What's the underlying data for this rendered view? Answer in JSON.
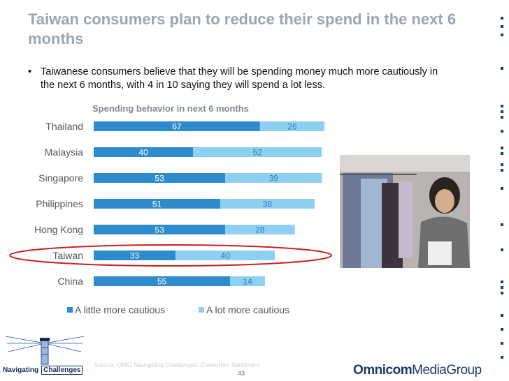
{
  "slide": {
    "title": "Taiwan consumers plan to reduce their spend in the next 6 months",
    "bullet_mark": "•",
    "bullet": "Taiwanese consumers believe that they will be spending money much more cautiously in the next 6 months, with 4 in 10 saying they will spend a lot less.",
    "source": "Source: OMG Navigating Challenges: Consumer Sentiment",
    "page_number": "43",
    "brand_bold": "Omnicom",
    "brand_rest": "MediaGroup",
    "logo_text_1": "Navigating",
    "logo_text_2": "Challenges"
  },
  "colors": {
    "series_1": "#2e8ccc",
    "series_2": "#8fd0f2",
    "highlight": "#cc1f1f",
    "title": "#9aa7b3"
  },
  "chart_data": {
    "type": "bar",
    "orientation": "horizontal",
    "stacked": true,
    "title": "Spending behavior in next 6 months",
    "categories": [
      "Thailand",
      "Malaysia",
      "Singapore",
      "Philippines",
      "Hong Kong",
      "Taiwan",
      "China"
    ],
    "series": [
      {
        "name": "A little more cautious",
        "values": [
          67,
          40,
          53,
          51,
          53,
          33,
          55
        ]
      },
      {
        "name": "A lot more cautious",
        "values": [
          26,
          52,
          39,
          38,
          28,
          40,
          14
        ]
      }
    ],
    "xlim": [
      0,
      100
    ],
    "grid": false,
    "legend": "bottom",
    "highlighted_category": "Taiwan"
  }
}
